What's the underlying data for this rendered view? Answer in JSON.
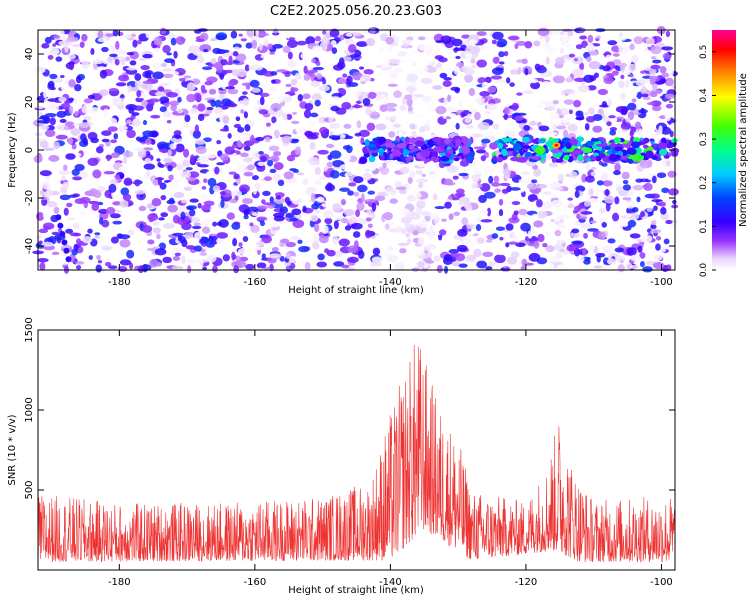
{
  "title": "C2E2.2025.056.20.23.G03",
  "chart_data": [
    {
      "type": "heatmap",
      "xlabel": "Height of straight line (km)",
      "ylabel": "Frequency (Hz)",
      "xlim": [
        -192,
        -98
      ],
      "ylim": [
        -50,
        50
      ],
      "x_ticks": [
        -180,
        -160,
        -140,
        -120,
        -100
      ],
      "y_ticks": [
        -40,
        -20,
        0,
        20,
        40
      ],
      "colorbar": {
        "label": "Normalized spectral amplitude",
        "range": [
          0,
          0.55
        ],
        "ticks": [
          "0.0",
          "0.1",
          "0.2",
          "0.3",
          "0.4",
          "0.5"
        ],
        "colormap": "rainbow (white-purple-blue-cyan-green-yellow-red-magenta)"
      },
      "features": [
        {
          "x_range": [
            -144,
            -128
          ],
          "freq_hz": 0,
          "peak_amplitude": 0.3
        },
        {
          "x_range": [
            -125,
            -98
          ],
          "freq_hz": 0,
          "peak_amplitude": 0.5,
          "peak_x": -115.5
        }
      ],
      "background_amplitude": [
        0.0,
        0.15
      ],
      "grid": false
    },
    {
      "type": "line",
      "xlabel": "Height of straight line (km)",
      "ylabel": "SNR (10 * v/v)",
      "xlim": [
        -192,
        -98
      ],
      "ylim": [
        0,
        1500
      ],
      "x_ticks": [
        -180,
        -160,
        -140,
        -120,
        -100
      ],
      "y_ticks": [
        500,
        1000,
        1500
      ],
      "series": [
        {
          "color": "#ee3333",
          "envelope": [
            {
              "x": -192,
              "y": 480
            },
            {
              "x": -180,
              "y": 420
            },
            {
              "x": -165,
              "y": 420
            },
            {
              "x": -150,
              "y": 460
            },
            {
              "x": -143,
              "y": 560
            },
            {
              "x": -140,
              "y": 990
            },
            {
              "x": -136,
              "y": 1500
            },
            {
              "x": -133,
              "y": 1050
            },
            {
              "x": -130,
              "y": 830
            },
            {
              "x": -128,
              "y": 500
            },
            {
              "x": -120,
              "y": 430
            },
            {
              "x": -117,
              "y": 650
            },
            {
              "x": -115,
              "y": 990
            },
            {
              "x": -113,
              "y": 640
            },
            {
              "x": -110,
              "y": 440
            },
            {
              "x": -98,
              "y": 470
            }
          ],
          "baseline": [
            {
              "x": -192,
              "y": 50
            },
            {
              "x": -140,
              "y": 60
            },
            {
              "x": -135,
              "y": 250
            },
            {
              "x": -128,
              "y": 60
            },
            {
              "x": -116,
              "y": 120
            },
            {
              "x": -112,
              "y": 50
            },
            {
              "x": -98,
              "y": 50
            }
          ]
        }
      ],
      "grid": false
    }
  ]
}
